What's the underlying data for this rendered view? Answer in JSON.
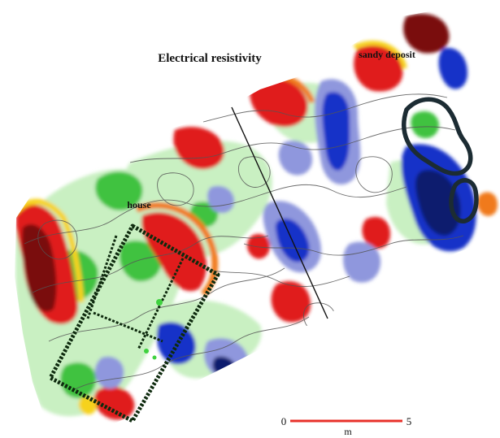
{
  "map": {
    "title": "Electrical resistivity",
    "annotations": {
      "house": "house",
      "sandy_deposit": "sandy deposit"
    },
    "scale_bar": {
      "start_label": "0",
      "end_label": "5",
      "unit_label": "m",
      "color": "#e8302a"
    },
    "palette": {
      "very_high": "#7a0e0e",
      "high": "#e01b1b",
      "elevated": "#f07a1c",
      "moderate": "#f6d21e",
      "neutral_green": "#c9f0c2",
      "green": "#3fc23f",
      "neutral": "#ffffff",
      "low": "#8f97dd",
      "very_low": "#1631c8",
      "darkest_low": "#0b1e6e",
      "contour": "#555555",
      "house_outline": "#0e2a0e",
      "deposit_outline": "#1c2c33"
    }
  }
}
